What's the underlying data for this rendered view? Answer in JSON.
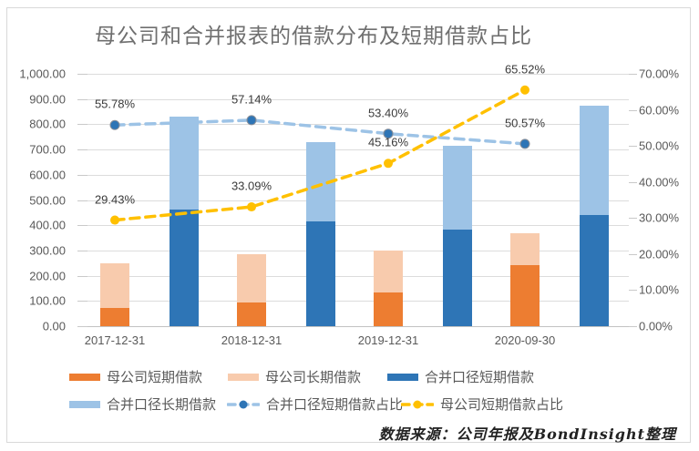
{
  "title": "母公司和合并报表的借款分布及短期借款占比",
  "footer": "数据来源：公司年报及BondInsight整理",
  "colors": {
    "grid": "#DCDCDC",
    "axis_line": "#C2C2C2",
    "axis_text": "#595959",
    "data_label_text": "#3A3A3A",
    "title_text": "#6F6F6F"
  },
  "chart_data": {
    "type": "bar",
    "subtype": "stacked-bar-with-dashed-line-ratios",
    "categories": [
      "2017-12-31",
      "2018-12-31",
      "2019-12-31",
      "2020-09-30"
    ],
    "bar_series": [
      {
        "key": "parent-short-term",
        "name": "母公司短期借款",
        "stack": "parent",
        "color": "#ED7D31",
        "values": [
          74,
          95,
          135,
          242
        ]
      },
      {
        "key": "parent-long-term",
        "name": "母公司长期借款",
        "stack": "parent",
        "color": "#F8CBAD",
        "values": [
          177,
          192,
          164,
          128
        ]
      },
      {
        "key": "consolidated-short-term",
        "name": "合并口径短期借款",
        "stack": "consolidated",
        "color": "#2E75B6",
        "values": [
          463,
          417,
          382,
          442
        ]
      },
      {
        "key": "consolidated-long-term",
        "name": "合并口径长期借款",
        "stack": "consolidated",
        "color": "#9DC3E6",
        "values": [
          367,
          313,
          333,
          433
        ]
      }
    ],
    "line_series": [
      {
        "key": "consolidated-short-ratio",
        "name": "合并口径短期借款占比",
        "color": "#9DC3E6",
        "marker_color": "#2E75B6",
        "marker_ring": "#8A8F98",
        "values": [
          55.78,
          57.14,
          53.4,
          50.57
        ],
        "labels": [
          "55.78%",
          "57.14%",
          "53.40%",
          "50.57%"
        ]
      },
      {
        "key": "parent-short-ratio",
        "name": "母公司短期借款占比",
        "color": "#FFC000",
        "marker_color": "#FFC000",
        "marker_ring": "none",
        "values": [
          29.43,
          33.09,
          45.16,
          65.52
        ],
        "labels": [
          "29.43%",
          "33.09%",
          "45.16%",
          "65.52%"
        ]
      }
    ],
    "left_axis": {
      "min": 0,
      "max": 1000,
      "ticks": [
        "1,000.00",
        "900.00",
        "800.00",
        "700.00",
        "600.00",
        "500.00",
        "400.00",
        "300.00",
        "200.00",
        "100.00",
        "0.00"
      ]
    },
    "right_axis": {
      "min": 0,
      "max": 70,
      "ticks": [
        "70.00%",
        "60.00%",
        "50.00%",
        "40.00%",
        "30.00%",
        "20.00%",
        "10.00%",
        "0.00%"
      ]
    },
    "grid": true,
    "legend_position": "bottom"
  },
  "legend": {
    "rows": [
      [
        "parent-short-term",
        "parent-long-term",
        "consolidated-short-term"
      ],
      [
        "consolidated-long-term",
        "consolidated-short-ratio",
        "parent-short-ratio"
      ]
    ]
  }
}
